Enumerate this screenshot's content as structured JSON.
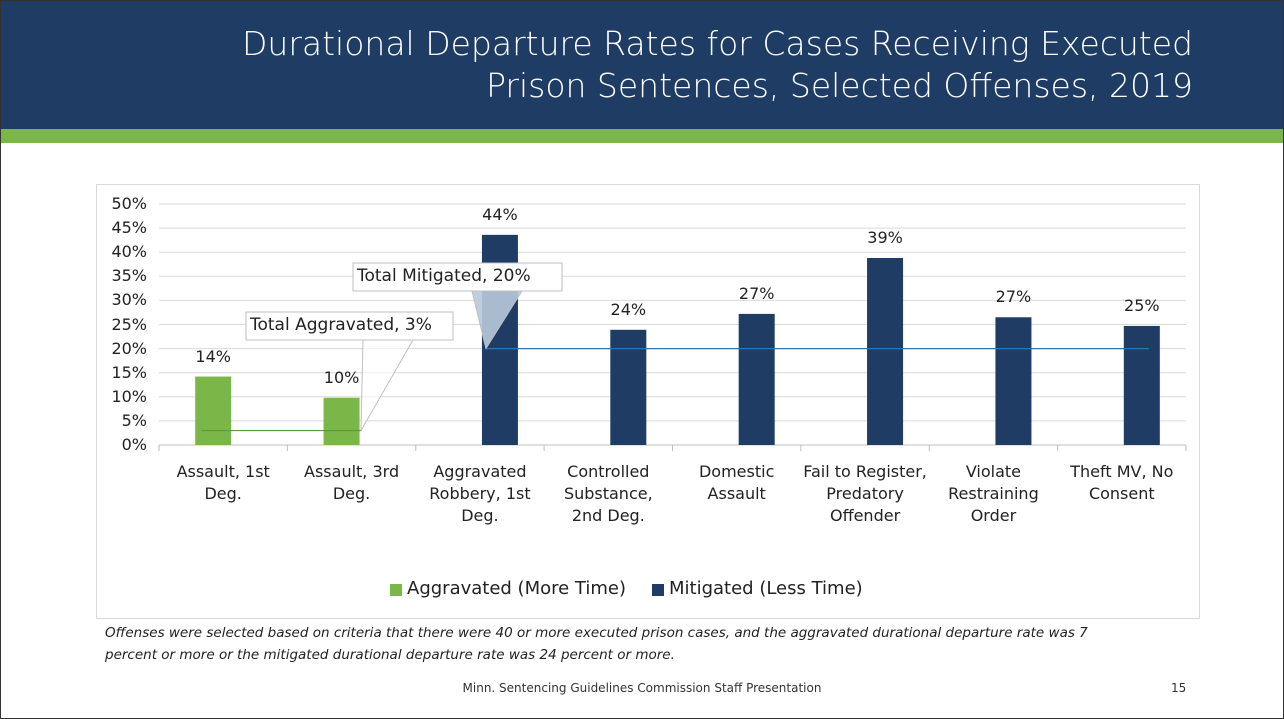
{
  "chart_data": {
    "type": "bar",
    "title": "Durational Departure Rates for Cases Receiving Executed Prison Sentences, Selected Offenses, 2019",
    "categories": [
      "Assault, 1st Deg.",
      "Assault, 3rd Deg.",
      "Aggravated Robbery, 1st Deg.",
      "Controlled Substance, 2nd Deg.",
      "Domestic Assault",
      "Fail to Register, Predatory Offender",
      "Violate Restraining Order",
      "Theft MV, No Consent"
    ],
    "series": [
      {
        "name": "Aggravated (More Time)",
        "color": "#7ab648",
        "values": [
          14.2,
          9.8,
          null,
          null,
          null,
          null,
          null,
          null
        ],
        "value_labels": [
          "14%",
          "10%",
          null,
          null,
          null,
          null,
          null,
          null
        ]
      },
      {
        "name": "Mitigated (Less Time)",
        "color": "#1f3c64",
        "values": [
          null,
          null,
          43.6,
          23.9,
          27.2,
          38.8,
          26.5,
          24.7
        ],
        "value_labels": [
          null,
          null,
          "44%",
          "24%",
          "27%",
          "39%",
          "27%",
          "25%"
        ]
      }
    ],
    "reference_lines": [
      {
        "label": "Total Aggravated, 3%",
        "value": 3,
        "color": "#5a9a3a"
      },
      {
        "label": "Total Mitigated, 20%",
        "value": 20,
        "color": "#2e75b6"
      }
    ],
    "ylim": [
      0,
      50
    ],
    "yticks": [
      {
        "value": 0,
        "label": "0%"
      },
      {
        "value": 5,
        "label": "5%"
      },
      {
        "value": 10,
        "label": "10%"
      },
      {
        "value": 15,
        "label": "15%"
      },
      {
        "value": 20,
        "label": "20%"
      },
      {
        "value": 25,
        "label": "25%"
      },
      {
        "value": 30,
        "label": "30%"
      },
      {
        "value": 35,
        "label": "35%"
      },
      {
        "value": 40,
        "label": "40%"
      },
      {
        "value": 45,
        "label": "45%"
      },
      {
        "value": 50,
        "label": "50%"
      }
    ],
    "grid": true,
    "legend": "bottom",
    "footnote": "Offenses were selected based on criteria that there were 40 or more executed prison cases, and the aggravated durational departure rate was 7 percent or more or the mitigated durational departure rate was 24 percent or more."
  },
  "footer": {
    "text": "Minn. Sentencing Guidelines Commission Staff Presentation",
    "page": "15"
  }
}
